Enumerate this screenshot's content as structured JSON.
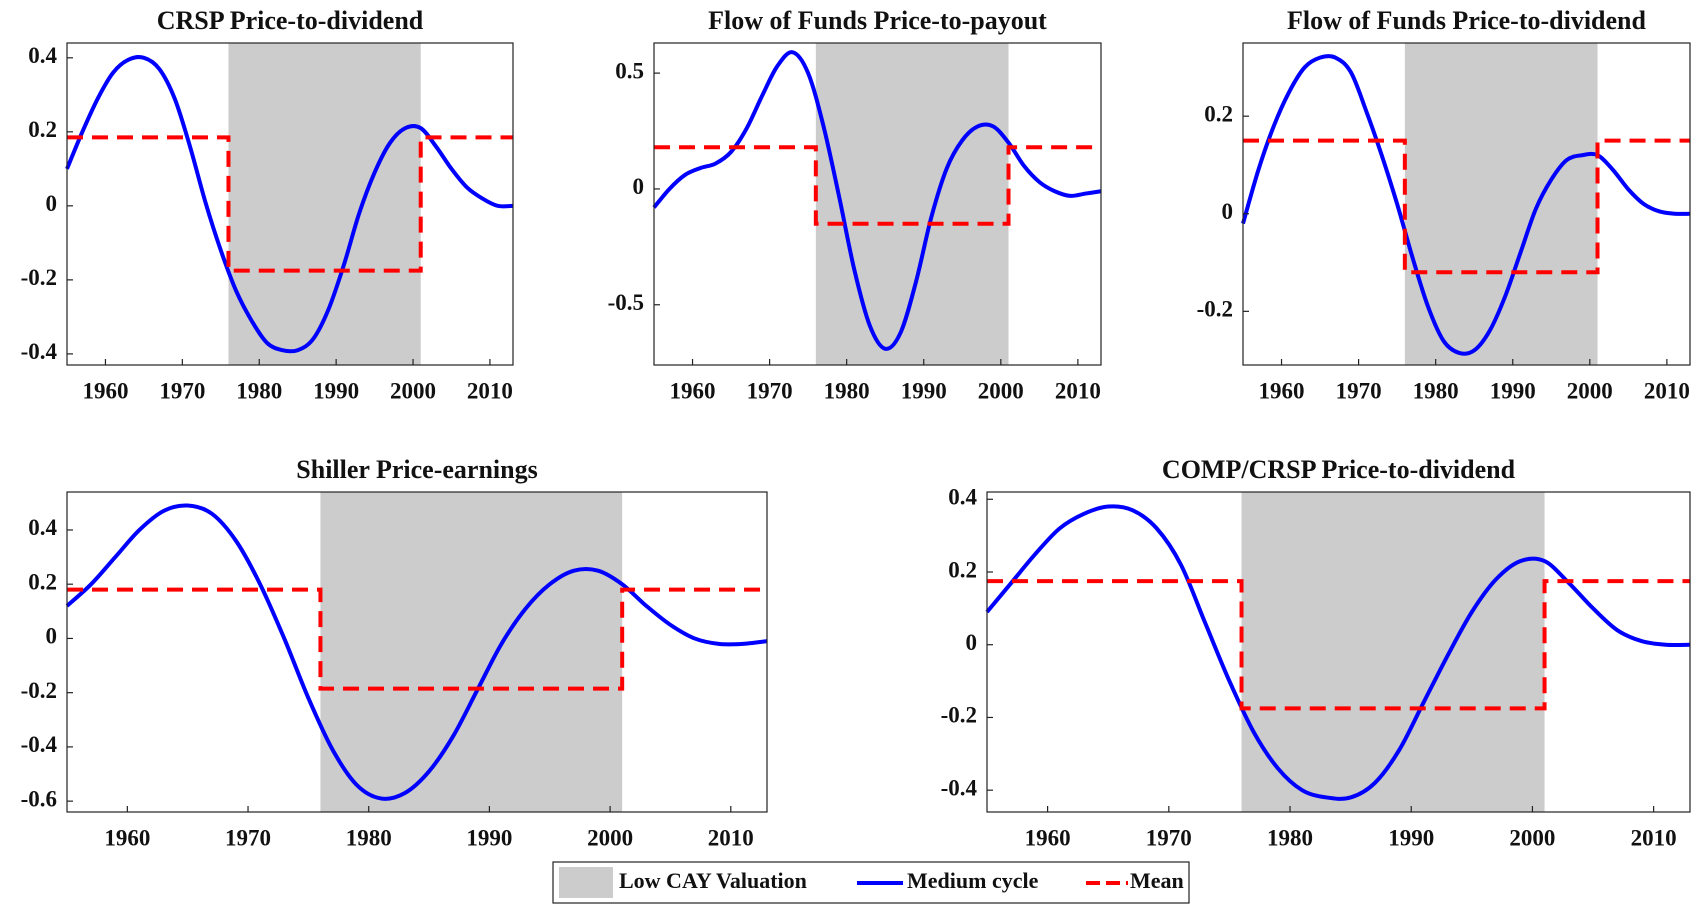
{
  "chart_data": [
    {
      "type": "line",
      "title": "CRSP Price-to-dividend",
      "x": [
        1955,
        1957,
        1959,
        1961,
        1963,
        1965,
        1967,
        1969,
        1971,
        1973,
        1975,
        1977,
        1979,
        1981,
        1983,
        1985,
        1987,
        1989,
        1991,
        1993,
        1995,
        1997,
        1999,
        2001,
        2003,
        2005,
        2007,
        2009,
        2011,
        2013
      ],
      "shade": {
        "name": "Low CAY Valuation",
        "color": "#cccccc",
        "x": [
          1976,
          2001
        ]
      },
      "series": [
        {
          "name": "Medium cycle",
          "color": "#0000ff",
          "values": [
            0.1,
            0.2,
            0.29,
            0.36,
            0.395,
            0.4,
            0.37,
            0.29,
            0.16,
            0.01,
            -0.12,
            -0.23,
            -0.31,
            -0.37,
            -0.39,
            -0.39,
            -0.36,
            -0.28,
            -0.16,
            -0.02,
            0.09,
            0.17,
            0.21,
            0.21,
            0.16,
            0.1,
            0.05,
            0.02,
            0.0,
            0.0
          ]
        },
        {
          "name": "Mean",
          "color": "#ff0000",
          "dashed": true,
          "x": [
            1955,
            1976,
            1976,
            2001,
            2001,
            2013
          ],
          "values": [
            0.185,
            0.185,
            -0.175,
            -0.175,
            0.185,
            0.185
          ]
        }
      ],
      "xlim": [
        1955,
        2013
      ],
      "xticks": [
        1960,
        1970,
        1980,
        1990,
        2000,
        2010
      ],
      "ylim": [
        -0.43,
        0.44
      ],
      "yticks": [
        -0.4,
        -0.2,
        0,
        0.2,
        0.4
      ]
    },
    {
      "type": "line",
      "title": "Flow of Funds Price-to-payout",
      "x": [
        1955,
        1957,
        1959,
        1961,
        1963,
        1965,
        1967,
        1969,
        1971,
        1973,
        1975,
        1977,
        1979,
        1981,
        1983,
        1985,
        1987,
        1989,
        1991,
        1993,
        1995,
        1997,
        1999,
        2001,
        2003,
        2005,
        2007,
        2009,
        2011,
        2013
      ],
      "shade": {
        "color": "#cccccc",
        "x": [
          1976,
          2001
        ]
      },
      "series": [
        {
          "color": "#0000ff",
          "values": [
            -0.08,
            0.0,
            0.06,
            0.09,
            0.11,
            0.16,
            0.26,
            0.4,
            0.53,
            0.59,
            0.5,
            0.27,
            -0.03,
            -0.35,
            -0.59,
            -0.69,
            -0.62,
            -0.4,
            -0.12,
            0.09,
            0.21,
            0.27,
            0.27,
            0.2,
            0.1,
            0.03,
            -0.01,
            -0.03,
            -0.02,
            -0.01
          ]
        },
        {
          "color": "#ff0000",
          "dashed": true,
          "x": [
            1955,
            1976,
            1976,
            2001,
            2001,
            2013
          ],
          "values": [
            0.18,
            0.18,
            -0.15,
            -0.15,
            0.18,
            0.18
          ]
        }
      ],
      "xlim": [
        1955,
        2013
      ],
      "xticks": [
        1960,
        1970,
        1980,
        1990,
        2000,
        2010
      ],
      "ylim": [
        -0.76,
        0.63
      ],
      "yticks": [
        -0.5,
        0,
        0.5
      ]
    },
    {
      "type": "line",
      "title": "Flow of Funds Price-to-dividend",
      "x": [
        1955,
        1957,
        1959,
        1961,
        1963,
        1965,
        1967,
        1969,
        1971,
        1973,
        1975,
        1977,
        1979,
        1981,
        1983,
        1985,
        1987,
        1989,
        1991,
        1993,
        1995,
        1997,
        1999,
        2001,
        2003,
        2005,
        2007,
        2009,
        2011,
        2013
      ],
      "shade": {
        "color": "#cccccc",
        "x": [
          1976,
          2001
        ]
      },
      "series": [
        {
          "color": "#0000ff",
          "values": [
            -0.02,
            0.09,
            0.18,
            0.25,
            0.3,
            0.32,
            0.32,
            0.29,
            0.21,
            0.12,
            0.02,
            -0.09,
            -0.19,
            -0.26,
            -0.285,
            -0.28,
            -0.24,
            -0.17,
            -0.08,
            0.01,
            0.07,
            0.11,
            0.12,
            0.12,
            0.09,
            0.05,
            0.02,
            0.005,
            0.0,
            0.0
          ]
        },
        {
          "color": "#ff0000",
          "dashed": true,
          "x": [
            1955,
            1976,
            1976,
            2001,
            2001,
            2013
          ],
          "values": [
            0.15,
            0.15,
            -0.12,
            -0.12,
            0.15,
            0.15
          ]
        }
      ],
      "xlim": [
        1955,
        2013
      ],
      "xticks": [
        1960,
        1970,
        1980,
        1990,
        2000,
        2010
      ],
      "ylim": [
        -0.31,
        0.35
      ],
      "yticks": [
        -0.2,
        0,
        0.2
      ]
    },
    {
      "type": "line",
      "title": "Shiller Price-earnings",
      "x": [
        1955,
        1957,
        1959,
        1961,
        1963,
        1965,
        1967,
        1969,
        1971,
        1973,
        1975,
        1977,
        1979,
        1981,
        1983,
        1985,
        1987,
        1989,
        1991,
        1993,
        1995,
        1997,
        1999,
        2001,
        2003,
        2005,
        2007,
        2009,
        2011,
        2013
      ],
      "shade": {
        "color": "#cccccc",
        "x": [
          1976,
          2001
        ]
      },
      "series": [
        {
          "color": "#0000ff",
          "values": [
            0.12,
            0.2,
            0.3,
            0.4,
            0.47,
            0.49,
            0.46,
            0.36,
            0.2,
            0.0,
            -0.22,
            -0.41,
            -0.54,
            -0.59,
            -0.57,
            -0.49,
            -0.36,
            -0.19,
            -0.02,
            0.11,
            0.2,
            0.25,
            0.25,
            0.2,
            0.12,
            0.05,
            0.0,
            -0.02,
            -0.02,
            -0.01
          ]
        },
        {
          "color": "#ff0000",
          "dashed": true,
          "x": [
            1955,
            1976,
            1976,
            2001,
            2001,
            2013
          ],
          "values": [
            0.18,
            0.18,
            -0.185,
            -0.185,
            0.18,
            0.18
          ]
        }
      ],
      "xlim": [
        1955,
        2013
      ],
      "xticks": [
        1960,
        1970,
        1980,
        1990,
        2000,
        2010
      ],
      "ylim": [
        -0.64,
        0.54
      ],
      "yticks": [
        -0.6,
        -0.4,
        -0.2,
        0,
        0.2,
        0.4
      ]
    },
    {
      "type": "line",
      "title": "COMP/CRSP Price-to-dividend",
      "x": [
        1955,
        1957,
        1959,
        1961,
        1963,
        1965,
        1967,
        1969,
        1971,
        1973,
        1975,
        1977,
        1979,
        1981,
        1983,
        1985,
        1987,
        1989,
        1991,
        1993,
        1995,
        1997,
        1999,
        2001,
        2003,
        2005,
        2007,
        2009,
        2011,
        2013
      ],
      "shade": {
        "color": "#cccccc",
        "x": [
          1976,
          2001
        ]
      },
      "series": [
        {
          "color": "#0000ff",
          "values": [
            0.09,
            0.17,
            0.25,
            0.32,
            0.36,
            0.38,
            0.37,
            0.32,
            0.22,
            0.06,
            -0.1,
            -0.24,
            -0.34,
            -0.4,
            -0.42,
            -0.42,
            -0.38,
            -0.29,
            -0.16,
            -0.03,
            0.09,
            0.18,
            0.23,
            0.23,
            0.17,
            0.1,
            0.04,
            0.01,
            0.0,
            0.0
          ]
        },
        {
          "color": "#ff0000",
          "dashed": true,
          "x": [
            1955,
            1976,
            1976,
            2001,
            2001,
            2013
          ],
          "values": [
            0.175,
            0.175,
            -0.175,
            -0.175,
            0.175,
            0.175
          ]
        }
      ],
      "xlim": [
        1955,
        2013
      ],
      "xticks": [
        1960,
        1970,
        1980,
        1990,
        2000,
        2010
      ],
      "ylim": [
        -0.46,
        0.42
      ],
      "yticks": [
        -0.4,
        -0.2,
        0,
        0.2,
        0.4
      ]
    }
  ]
}
